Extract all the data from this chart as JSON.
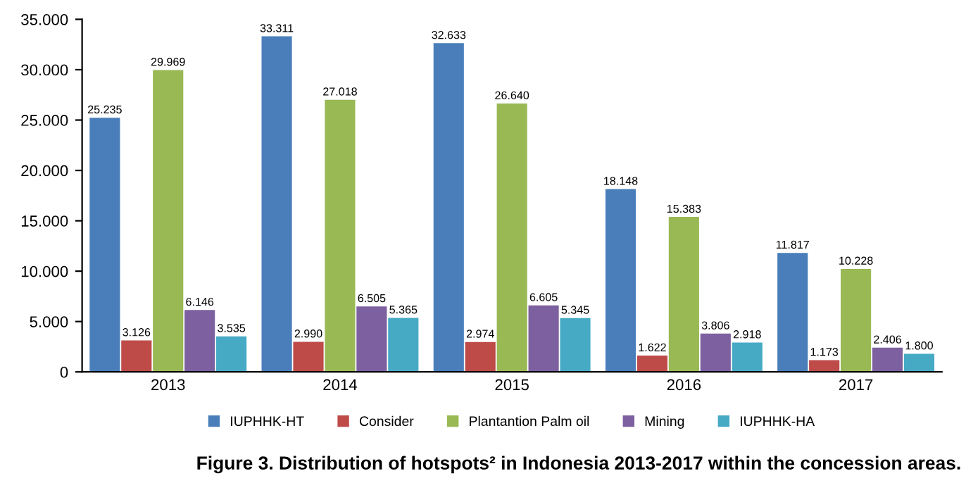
{
  "chart_data": {
    "type": "bar",
    "categories": [
      "2013",
      "2014",
      "2015",
      "2016",
      "2017"
    ],
    "series": [
      {
        "name": "IUPHHK-HT",
        "color": "#4a7ebb",
        "values": [
          25235,
          33311,
          32633,
          18148,
          11817
        ],
        "value_labels": [
          "25.235",
          "33.311",
          "32.633",
          "18.148",
          "11.817"
        ]
      },
      {
        "name": "Consider",
        "color": "#be4b48",
        "values": [
          3126,
          2990,
          2974,
          1622,
          1173
        ],
        "value_labels": [
          "3.126",
          "2.990",
          "2.974",
          "1.622",
          "1.173"
        ]
      },
      {
        "name": "Plantantion Palm oil",
        "color": "#98b954",
        "values": [
          29969,
          27018,
          26640,
          15383,
          10228
        ],
        "value_labels": [
          "29.969",
          "27.018",
          "26.640",
          "15.383",
          "10.228"
        ]
      },
      {
        "name": "Mining",
        "color": "#7d60a0",
        "values": [
          6146,
          6505,
          6605,
          3806,
          2406
        ],
        "value_labels": [
          "6.146",
          "6.505",
          "6.605",
          "3.806",
          "2.406"
        ]
      },
      {
        "name": "IUPHHK-HA",
        "color": "#46aac5",
        "values": [
          3535,
          5365,
          5345,
          2918,
          1800
        ],
        "value_labels": [
          "3.535",
          "5.365",
          "5.345",
          "2.918",
          "1.800"
        ]
      }
    ],
    "ylim": [
      0,
      35000
    ],
    "yticks": [
      {
        "value": 0,
        "label": "0"
      },
      {
        "value": 5000,
        "label": "5.000"
      },
      {
        "value": 10000,
        "label": "10.000"
      },
      {
        "value": 15000,
        "label": "15.000"
      },
      {
        "value": 20000,
        "label": "20.000"
      },
      {
        "value": 25000,
        "label": "25.000"
      },
      {
        "value": 30000,
        "label": "30.000"
      },
      {
        "value": 35000,
        "label": "35.000"
      }
    ],
    "grid": false,
    "legend": "bottom",
    "annotations": [
      "Figure 3. Distribution of hotspots² in Indonesia 2013-2017 within the concession areas."
    ]
  }
}
